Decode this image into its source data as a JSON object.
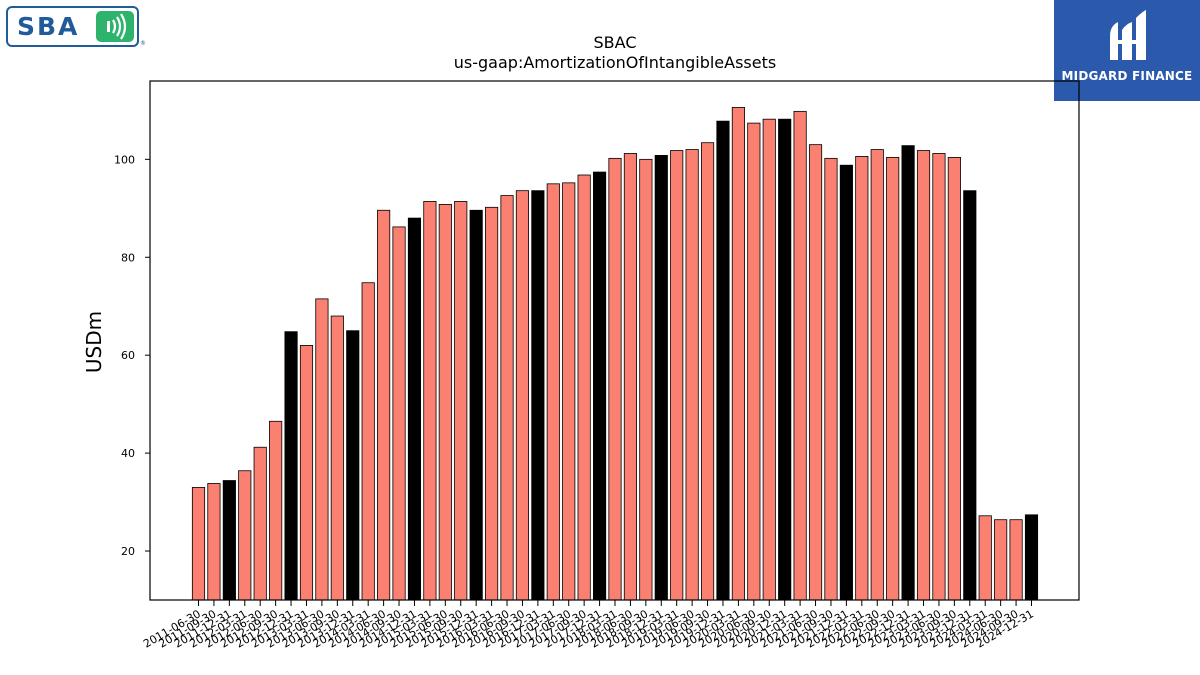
{
  "logos": {
    "left_logo_text": "SBA",
    "left_logo_reg": "®",
    "right_logo_text": "MIDGARD FINANCE"
  },
  "chart_data": {
    "type": "bar",
    "title": "SBAC",
    "subtitle": "us-gaap:AmortizationOfIntangibleAssets",
    "xlabel": "",
    "ylabel": "USDm",
    "ylim": [
      10,
      116
    ],
    "yticks": [
      20,
      40,
      60,
      80,
      100
    ],
    "grid": false,
    "colors": {
      "quarter": "#fa8072",
      "annual": "#000000"
    },
    "categories": [
      "2011-06-30",
      "2011-09-30",
      "2011-12-31",
      "2012-03-31",
      "2012-06-30",
      "2012-09-30",
      "2012-12-31",
      "2013-03-31",
      "2013-06-30",
      "2013-09-30",
      "2013-12-31",
      "2014-03-31",
      "2014-06-30",
      "2014-09-30",
      "2014-12-31",
      "2015-03-31",
      "2015-06-30",
      "2015-09-30",
      "2015-12-31",
      "2016-03-31",
      "2016-06-30",
      "2016-09-30",
      "2016-12-31",
      "2017-03-31",
      "2017-06-30",
      "2017-09-30",
      "2017-12-31",
      "2018-03-31",
      "2018-06-30",
      "2018-09-30",
      "2018-12-31",
      "2019-03-31",
      "2019-06-30",
      "2019-09-30",
      "2019-12-31",
      "2020-03-31",
      "2020-06-30",
      "2020-09-30",
      "2020-12-31",
      "2021-03-31",
      "2021-06-30",
      "2021-09-30",
      "2021-12-31",
      "2022-03-31",
      "2022-06-30",
      "2022-09-30",
      "2022-12-31",
      "2023-03-31",
      "2023-06-30",
      "2023-09-30",
      "2023-12-31",
      "2024-03-31",
      "2024-06-30",
      "2024-09-30",
      "2024-12-31"
    ],
    "values": [
      33.0,
      33.8,
      34.4,
      36.4,
      41.2,
      46.5,
      64.8,
      62.0,
      71.5,
      68.0,
      65.0,
      74.8,
      89.6,
      86.2,
      88.0,
      91.4,
      90.8,
      91.4,
      89.6,
      90.2,
      92.6,
      93.6,
      93.6,
      95.0,
      95.2,
      96.8,
      97.4,
      100.2,
      101.2,
      100.0,
      100.8,
      101.8,
      102.0,
      103.4,
      107.8,
      110.6,
      107.4,
      108.2,
      108.2,
      109.8,
      103.0,
      100.2,
      98.8,
      100.6,
      102.0,
      100.4,
      102.8,
      101.8,
      101.2,
      100.4,
      93.6,
      27.2,
      26.4,
      26.4,
      27.4
    ],
    "annual": [
      false,
      false,
      true,
      false,
      false,
      false,
      true,
      false,
      false,
      false,
      true,
      false,
      false,
      false,
      true,
      false,
      false,
      false,
      true,
      false,
      false,
      false,
      true,
      false,
      false,
      false,
      true,
      false,
      false,
      false,
      true,
      false,
      false,
      false,
      true,
      false,
      false,
      false,
      true,
      false,
      false,
      false,
      true,
      false,
      false,
      false,
      true,
      false,
      false,
      false,
      true,
      false,
      false,
      false,
      true
    ]
  }
}
